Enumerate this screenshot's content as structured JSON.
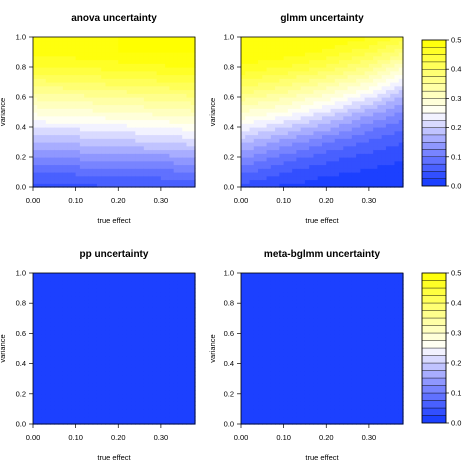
{
  "colors": {
    "high": "#ffff00",
    "mid": "#ffffff",
    "low": "#0000ff",
    "frame": "#000000"
  },
  "chart_data": [
    {
      "type": "heatmap",
      "title": "anova uncertainty",
      "xlabel": "true effect",
      "ylabel": "variance",
      "xlim": [
        0,
        0.38
      ],
      "ylim": [
        0,
        1
      ],
      "xticks": [
        "0.00",
        "0.10",
        "0.20",
        "0.30"
      ],
      "yticks": [
        "0.0",
        "0.2",
        "0.4",
        "0.6",
        "0.8",
        "1.0"
      ],
      "surface": {
        "x": [
          0,
          0.1,
          0.2,
          0.3,
          0.38
        ],
        "y": [
          0,
          0.1,
          0.2,
          0.3,
          0.4,
          0.5,
          0.6,
          0.7,
          0.8,
          0.9,
          1.0
        ],
        "z": [
          [
            0.04,
            0.04,
            0.05,
            0.05,
            0.05
          ],
          [
            0.08,
            0.08,
            0.09,
            0.09,
            0.1
          ],
          [
            0.13,
            0.13,
            0.14,
            0.14,
            0.15
          ],
          [
            0.18,
            0.18,
            0.19,
            0.2,
            0.21
          ],
          [
            0.23,
            0.23,
            0.24,
            0.25,
            0.26
          ],
          [
            0.28,
            0.29,
            0.3,
            0.31,
            0.32
          ],
          [
            0.33,
            0.34,
            0.35,
            0.36,
            0.37
          ],
          [
            0.39,
            0.4,
            0.41,
            0.42,
            0.43
          ],
          [
            0.45,
            0.45,
            0.46,
            0.47,
            0.48
          ],
          [
            0.49,
            0.49,
            0.5,
            0.5,
            0.5
          ],
          [
            0.5,
            0.5,
            0.5,
            0.5,
            0.5
          ]
        ]
      }
    },
    {
      "type": "heatmap",
      "title": "glmm uncertainty",
      "xlabel": "true effect",
      "ylabel": "variance",
      "xlim": [
        0,
        0.38
      ],
      "ylim": [
        0,
        1
      ],
      "xticks": [
        "0.00",
        "0.10",
        "0.20",
        "0.30"
      ],
      "yticks": [
        "0.0",
        "0.2",
        "0.4",
        "0.6",
        "0.8",
        "1.0"
      ],
      "surface": {
        "x": [
          0,
          0.1,
          0.2,
          0.3,
          0.38
        ],
        "y": [
          0,
          0.1,
          0.2,
          0.3,
          0.4,
          0.5,
          0.6,
          0.7,
          0.8,
          0.9,
          1.0
        ],
        "z": [
          [
            0.04,
            0.02,
            0.01,
            0.01,
            0.01
          ],
          [
            0.08,
            0.05,
            0.03,
            0.02,
            0.01
          ],
          [
            0.13,
            0.09,
            0.06,
            0.04,
            0.03
          ],
          [
            0.18,
            0.14,
            0.1,
            0.07,
            0.05
          ],
          [
            0.24,
            0.2,
            0.16,
            0.11,
            0.08
          ],
          [
            0.3,
            0.27,
            0.22,
            0.16,
            0.12
          ],
          [
            0.36,
            0.33,
            0.29,
            0.23,
            0.17
          ],
          [
            0.42,
            0.39,
            0.35,
            0.3,
            0.23
          ],
          [
            0.47,
            0.45,
            0.42,
            0.37,
            0.3
          ],
          [
            0.5,
            0.49,
            0.47,
            0.43,
            0.38
          ],
          [
            0.5,
            0.5,
            0.5,
            0.48,
            0.44
          ]
        ]
      }
    },
    {
      "type": "heatmap",
      "title": "pp uncertainty",
      "xlabel": "true effect",
      "ylabel": "variance",
      "xlim": [
        0,
        0.38
      ],
      "ylim": [
        0,
        1
      ],
      "xticks": [
        "0.00",
        "0.10",
        "0.20",
        "0.30"
      ],
      "yticks": [
        "0.0",
        "0.2",
        "0.4",
        "0.6",
        "0.8",
        "1.0"
      ],
      "surface": {
        "x": [
          0,
          0.38
        ],
        "y": [
          0,
          1.0
        ],
        "z": [
          [
            0.02,
            0.02
          ],
          [
            0.02,
            0.02
          ]
        ]
      }
    },
    {
      "type": "heatmap",
      "title": "meta-bglmm uncertainty",
      "xlabel": "true effect",
      "ylabel": "variance",
      "xlim": [
        0,
        0.38
      ],
      "ylim": [
        0,
        1
      ],
      "xticks": [
        "0.00",
        "0.10",
        "0.20",
        "0.30"
      ],
      "yticks": [
        "0.0",
        "0.2",
        "0.4",
        "0.6",
        "0.8",
        "1.0"
      ],
      "surface": {
        "x": [
          0,
          0.38
        ],
        "y": [
          0,
          1.0
        ],
        "z": [
          [
            0.02,
            0.02
          ],
          [
            0.02,
            0.02
          ]
        ]
      }
    }
  ],
  "colorbar": {
    "range": [
      0,
      0.5
    ],
    "ticks": [
      "0.0",
      "0.1",
      "0.2",
      "0.3",
      "0.4",
      "0.5"
    ]
  }
}
